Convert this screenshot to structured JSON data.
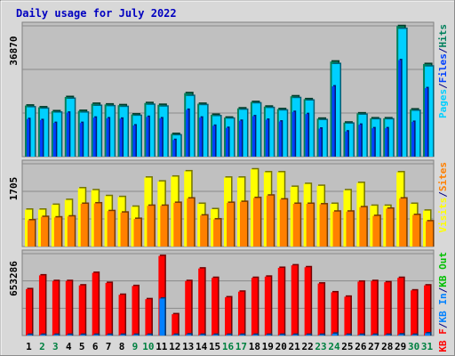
{
  "title": "Daily usage for July 2022",
  "colors": {
    "background": "#ffffff",
    "frame": "#d8d8d8",
    "plot": "#c0c0c0",
    "grid": "#8a8a8a",
    "title_text": "#0000c0",
    "hits": "#00805c",
    "files": "#0040ff",
    "pages": "#00d0ff",
    "visits": "#ffff00",
    "sites": "#ff8000",
    "kb_f": "#ff0000",
    "kb_in": "#0080ff",
    "kb_out": "#00c000",
    "weekend_label": "#008040",
    "weekday_label": "#000000",
    "slash": "#000080"
  },
  "chart_data": [
    {
      "type": "bar",
      "name": "hits-files-pages",
      "ytick_label": "36870",
      "ylim": [
        0,
        36870
      ],
      "grid": [
        12290,
        24580,
        36870
      ],
      "legend": [
        "Pages",
        "/",
        "Files",
        "/",
        "Hits"
      ],
      "categories": [
        "1",
        "2",
        "3",
        "4",
        "5",
        "6",
        "7",
        "8",
        "9",
        "10",
        "11",
        "12",
        "13",
        "14",
        "15",
        "16",
        "17",
        "18",
        "19",
        "20",
        "21",
        "22",
        "23",
        "24",
        "25",
        "26",
        "27",
        "28",
        "29",
        "30",
        "31"
      ],
      "series": [
        {
          "name": "Hits",
          "color": "#00805c",
          "values": [
            14400,
            13900,
            12800,
            16800,
            12900,
            14900,
            14700,
            14500,
            11900,
            15100,
            14600,
            6400,
            17900,
            14900,
            11800,
            11000,
            13600,
            15400,
            14100,
            13400,
            17000,
            16200,
            10700,
            26800,
            9600,
            12200,
            10800,
            10800,
            36800,
            13300,
            26100
          ]
        },
        {
          "name": "Files",
          "color": "#0040ff",
          "values": [
            10600,
            10300,
            9500,
            12400,
            9500,
            11000,
            10800,
            10700,
            8800,
            11200,
            10800,
            4700,
            13200,
            11000,
            8700,
            8100,
            10100,
            11400,
            10400,
            9900,
            12600,
            12000,
            7900,
            19800,
            7100,
            9000,
            8000,
            8000,
            27200,
            9800,
            19300
          ]
        },
        {
          "name": "Pages",
          "color": "#00d0ff",
          "values": [
            13900,
            13500,
            12400,
            16300,
            12400,
            14300,
            14200,
            14000,
            11500,
            14600,
            14100,
            6000,
            17100,
            14500,
            11400,
            10700,
            13200,
            15000,
            13700,
            13000,
            16500,
            15800,
            10300,
            26100,
            9300,
            11800,
            10500,
            10500,
            36000,
            12900,
            25400
          ]
        }
      ]
    },
    {
      "type": "bar",
      "name": "visits-sites",
      "ytick_label": "1705",
      "ylim": [
        0,
        1705
      ],
      "grid": [
        568,
        1136,
        1705
      ],
      "legend": [
        "Visits",
        "/",
        "Sites"
      ],
      "categories": [
        "1",
        "2",
        "3",
        "4",
        "5",
        "6",
        "7",
        "8",
        "9",
        "10",
        "11",
        "12",
        "13",
        "14",
        "15",
        "16",
        "17",
        "18",
        "19",
        "20",
        "21",
        "22",
        "23",
        "24",
        "25",
        "26",
        "27",
        "28",
        "29",
        "30",
        "31"
      ],
      "series": [
        {
          "name": "Visits",
          "color": "#ffff00",
          "values": [
            760,
            760,
            860,
            960,
            1200,
            1160,
            1040,
            1020,
            820,
            1420,
            1340,
            1440,
            1550,
            880,
            770,
            1420,
            1420,
            1590,
            1530,
            1530,
            1230,
            1290,
            1250,
            880,
            1160,
            1310,
            840,
            840,
            1530,
            880,
            740
          ]
        },
        {
          "name": "Sites",
          "color": "#ff8000",
          "values": [
            540,
            610,
            600,
            620,
            880,
            890,
            730,
            700,
            570,
            840,
            840,
            900,
            990,
            640,
            560,
            900,
            920,
            1000,
            1050,
            970,
            880,
            880,
            870,
            720,
            720,
            810,
            630,
            780,
            990,
            650,
            520
          ]
        }
      ]
    },
    {
      "type": "bar",
      "name": "kbf-kbin-kbout",
      "ytick_label": "653286",
      "ylim": [
        0,
        653286
      ],
      "grid": [
        217762,
        435524,
        653286
      ],
      "legend": [
        "KB F",
        "/",
        "KB In",
        "/",
        "KB Out"
      ],
      "categories": [
        "1",
        "2",
        "3",
        "4",
        "5",
        "6",
        "7",
        "8",
        "9",
        "10",
        "11",
        "12",
        "13",
        "14",
        "15",
        "16",
        "17",
        "18",
        "19",
        "20",
        "21",
        "22",
        "23",
        "24",
        "25",
        "26",
        "27",
        "28",
        "29",
        "30",
        "31"
      ],
      "series": [
        {
          "name": "KB F",
          "color": "#ff0000",
          "values": [
            370000,
            480000,
            435000,
            435000,
            400000,
            500000,
            420000,
            325000,
            395000,
            290000,
            635000,
            170000,
            435000,
            535000,
            460000,
            305000,
            350000,
            460000,
            470000,
            540000,
            560000,
            545000,
            415000,
            345000,
            310000,
            430000,
            435000,
            425000,
            460000,
            360000,
            400000
          ]
        },
        {
          "name": "KB In",
          "color": "#0080ff",
          "values": [
            6000,
            6000,
            6000,
            6000,
            6000,
            6000,
            6000,
            6000,
            6000,
            6000,
            295000,
            6000,
            9000,
            6000,
            6000,
            6000,
            6000,
            6000,
            6000,
            6000,
            6000,
            6000,
            6000,
            15000,
            6000,
            6000,
            6000,
            6000,
            9000,
            6000,
            18000
          ]
        },
        {
          "name": "KB Out",
          "color": "#00c000",
          "values": [
            0,
            0,
            0,
            0,
            0,
            0,
            0,
            0,
            0,
            0,
            0,
            0,
            0,
            0,
            0,
            0,
            0,
            0,
            0,
            0,
            0,
            0,
            0,
            0,
            0,
            0,
            0,
            0,
            0,
            0,
            0
          ]
        }
      ]
    }
  ],
  "weekend_days": [
    2,
    3,
    9,
    10,
    16,
    17,
    23,
    24,
    30,
    31
  ]
}
